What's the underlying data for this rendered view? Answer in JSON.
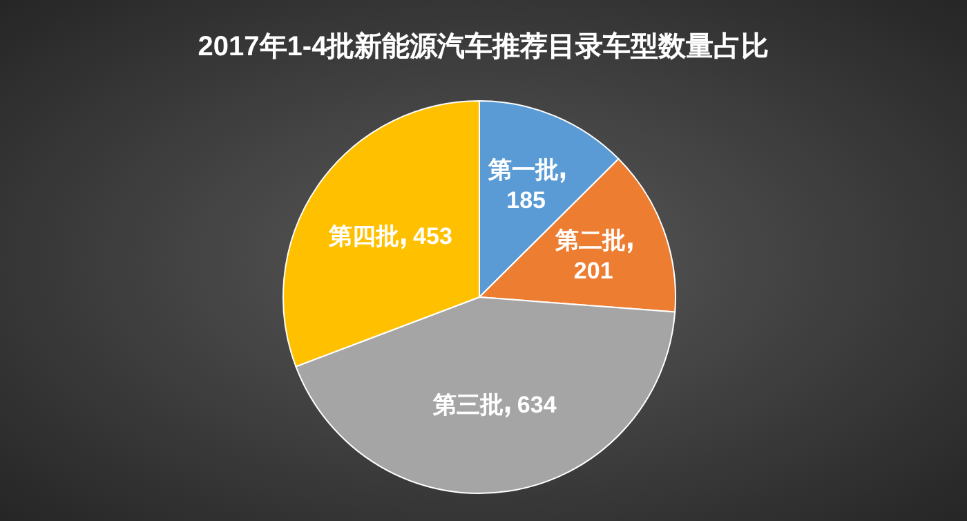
{
  "chart_data": {
    "type": "pie",
    "title": "2017年1-4批新能源汽车推荐目录车型数量占比",
    "categories": [
      "第一批",
      "第二批",
      "第三批",
      "第四批"
    ],
    "values": [
      185,
      201,
      634,
      453
    ],
    "colors": [
      "#5b9bd5",
      "#ed7d31",
      "#a5a5a5",
      "#ffc000"
    ],
    "data_labels": true
  }
}
